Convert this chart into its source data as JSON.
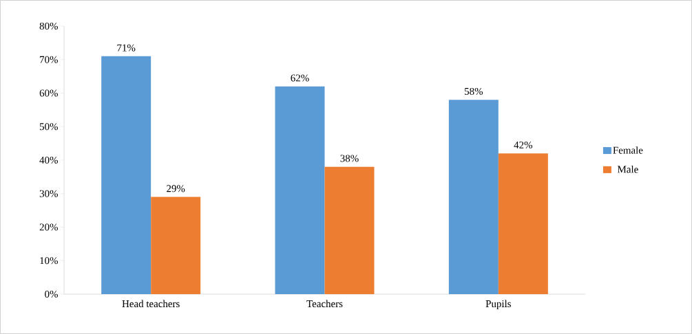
{
  "chart_data": {
    "type": "bar",
    "categories": [
      "Head teachers",
      "Teachers",
      "Pupils"
    ],
    "series": [
      {
        "name": "Female",
        "color": "#5b9bd5",
        "values": [
          71,
          62,
          58
        ],
        "value_labels": [
          "71%",
          "62%",
          "58%"
        ]
      },
      {
        "name": "Male",
        "color": "#ed7d31",
        "values": [
          29,
          38,
          42
        ],
        "value_labels": [
          "29%",
          "38%",
          "42%"
        ]
      }
    ],
    "ylim": [
      0,
      80
    ],
    "yticks": [
      {
        "value": 0,
        "label": "0%"
      },
      {
        "value": 10,
        "label": "10%"
      },
      {
        "value": 20,
        "label": "20%"
      },
      {
        "value": 30,
        "label": "30%"
      },
      {
        "value": 40,
        "label": "40%"
      },
      {
        "value": 50,
        "label": "50%"
      },
      {
        "value": 60,
        "label": "60%"
      },
      {
        "value": 70,
        "label": "70%"
      },
      {
        "value": 80,
        "label": "80%"
      }
    ],
    "legend": "right",
    "grid": false
  }
}
